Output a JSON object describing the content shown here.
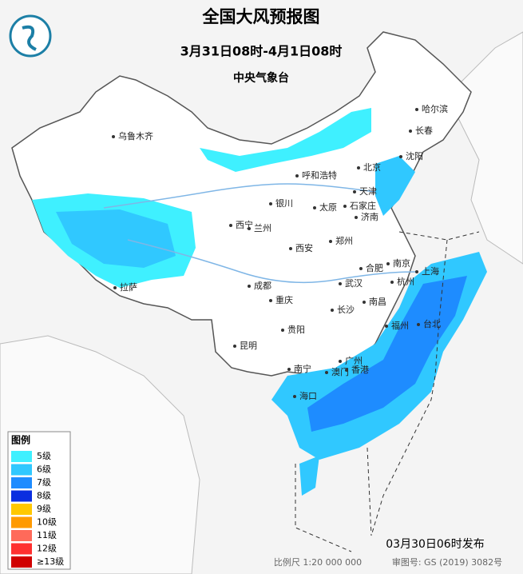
{
  "header": {
    "title": "全国大风预报图",
    "subtitle": "3月31日08时-4月1日08时",
    "agency": "中央气象台"
  },
  "legend": {
    "title": "图例",
    "items": [
      {
        "label": "5级",
        "color": "#3ff0ff"
      },
      {
        "label": "6级",
        "color": "#30c8ff"
      },
      {
        "label": "7级",
        "color": "#1e8cff"
      },
      {
        "label": "8级",
        "color": "#0a2ee0"
      },
      {
        "label": "9级",
        "color": "#ffc800"
      },
      {
        "label": "10级",
        "color": "#ff9a00"
      },
      {
        "label": "11级",
        "color": "#ff6a5a"
      },
      {
        "label": "12级",
        "color": "#ff3030"
      },
      {
        "label": "≥13级",
        "color": "#d00000"
      }
    ]
  },
  "cities": [
    "乌鲁木齐",
    "哈尔滨",
    "长春",
    "沈阳",
    "北京",
    "天津",
    "呼和浩特",
    "银川",
    "太原",
    "石家庄",
    "济南",
    "西宁",
    "兰州",
    "西安",
    "郑州",
    "合肥",
    "南京",
    "上海",
    "杭州",
    "武汉",
    "成都",
    "重庆",
    "长沙",
    "南昌",
    "拉萨",
    "贵阳",
    "昆明",
    "福州",
    "台北",
    "南宁",
    "广州",
    "澳门",
    "香港",
    "海口"
  ],
  "footer": {
    "published": "03月30日06时发布",
    "scale": "比例尺 1:20 000 000",
    "review": "审图号: GS (2019) 3082号"
  }
}
